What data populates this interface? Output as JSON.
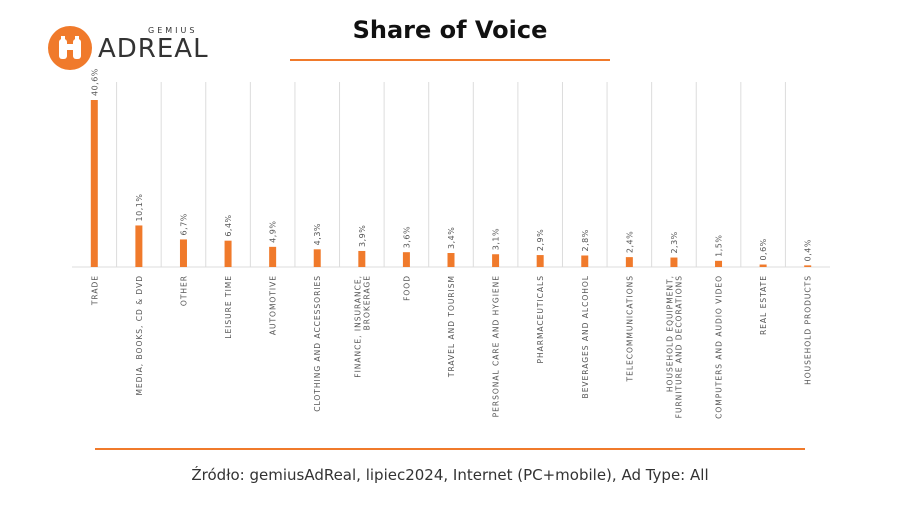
{
  "logo": {
    "small": "GEMIUS",
    "big": "ADREAL",
    "icon": "binoculars-icon"
  },
  "title": "Share of Voice",
  "source": "Źródło: gemiusAdReal, lipiec2024, Internet (PC+mobile), Ad Type: All",
  "colors": {
    "accent": "#f07a2b",
    "grid": "#dcdcdc",
    "text": "#555555"
  },
  "chart_data": {
    "type": "bar",
    "title": "Share of Voice",
    "xlabel": "",
    "ylabel": "",
    "ylim": [
      0,
      40.6
    ],
    "grid": true,
    "categories": [
      "TRADE",
      "MEDIA, BOOKS, CD & DVD",
      "OTHER",
      "LEISURE TIME",
      "AUTOMOTIVE",
      "CLOTHING AND ACCESSORIES",
      "FINANCE, INSURANCE, BROKERAGE",
      "FOOD",
      "TRAVEL AND TOURISM",
      "PERSONAL CARE AND HYGIENE",
      "PHARMACEUTICALS",
      "BEVERAGES AND ALCOHOL",
      "TELECOMMUNICATIONS",
      "HOUSEHOLD EQUIPMENT, FURNITURE AND DECORATIONS",
      "COMPUTERS AND AUDIO VIDEO",
      "REAL ESTATE",
      "HOUSEHOLD PRODUCTS"
    ],
    "values": [
      40.6,
      10.1,
      6.7,
      6.4,
      4.9,
      4.3,
      3.9,
      3.6,
      3.4,
      3.1,
      2.9,
      2.8,
      2.4,
      2.3,
      1.5,
      0.6,
      0.4
    ],
    "value_labels": [
      "40,6%",
      "10,1%",
      "6,7%",
      "6,4%",
      "4,9%",
      "4,3%",
      "3,9%",
      "3,6%",
      "3,4%",
      "3,1%",
      "2,9%",
      "2,8%",
      "2,4%",
      "2,3%",
      "1,5%",
      "0,6%",
      "0,4%"
    ],
    "category_lines": [
      [
        "TRADE"
      ],
      [
        "MEDIA, BOOKS, CD & DVD"
      ],
      [
        "OTHER"
      ],
      [
        "LEISURE TIME"
      ],
      [
        "AUTOMOTIVE"
      ],
      [
        "CLOTHING AND ACCESSORIES"
      ],
      [
        "FINANCE, INSURANCE,",
        "BROKERAGE"
      ],
      [
        "FOOD"
      ],
      [
        "TRAVEL AND TOURISM"
      ],
      [
        "PERSONAL CARE AND HYGIENE"
      ],
      [
        "PHARMACEUTICALS"
      ],
      [
        "BEVERAGES AND ALCOHOL"
      ],
      [
        "TELECOMMUNICATIONS"
      ],
      [
        "HOUSEHOLD EQUIPMENT,",
        "FURNITURE AND DECORATIONS"
      ],
      [
        "COMPUTERS AND AUDIO VIDEO"
      ],
      [
        "REAL ESTATE"
      ],
      [
        "HOUSEHOLD PRODUCTS"
      ]
    ]
  }
}
